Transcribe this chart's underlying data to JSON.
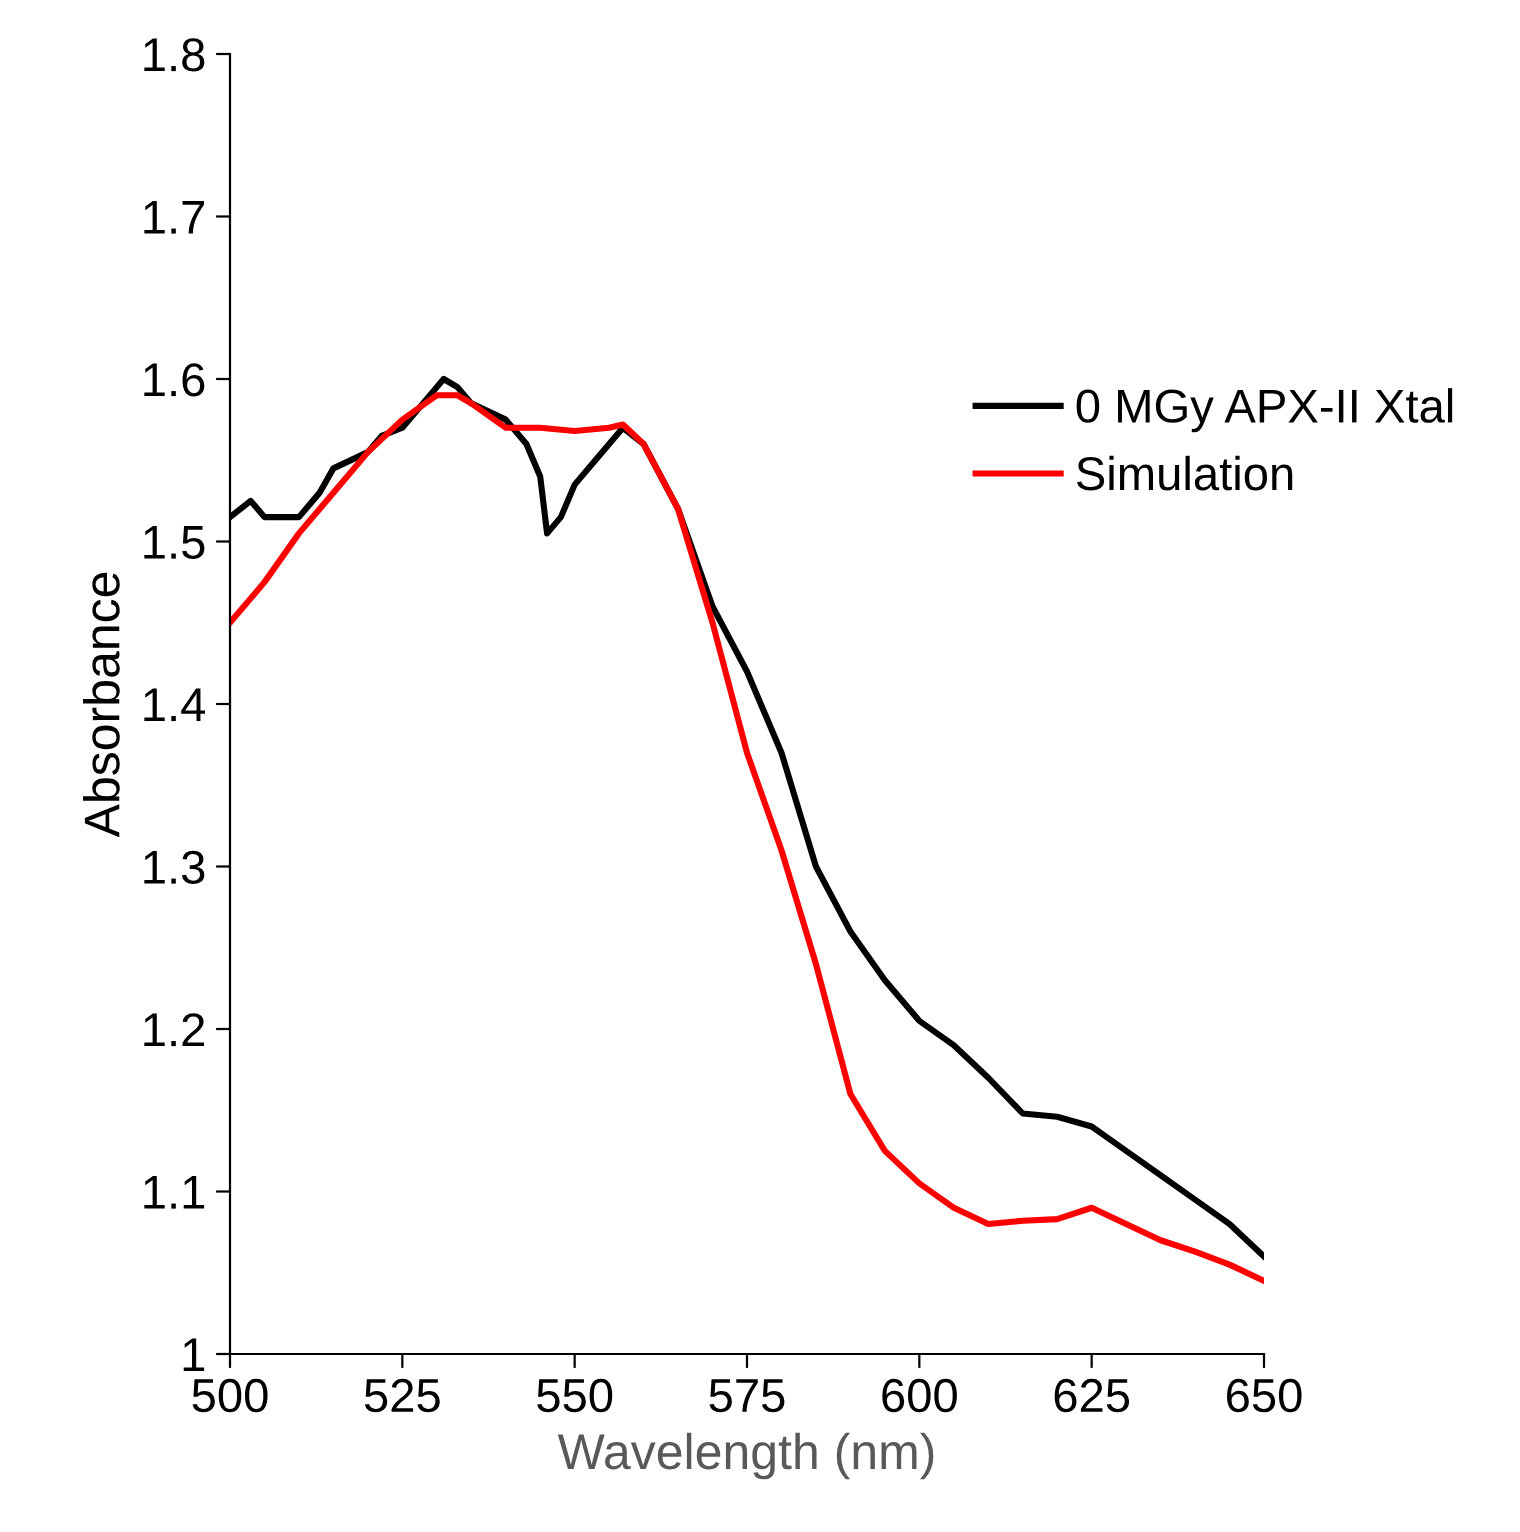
{
  "chart_data": {
    "type": "line",
    "xlabel": "Wavelength (nm)",
    "ylabel": "Absorbance",
    "xlim": [
      500,
      650
    ],
    "xticks": [
      500,
      525,
      550,
      575,
      600,
      625,
      650
    ],
    "ylim": [
      1,
      1.8
    ],
    "yticks": [
      1,
      1.1,
      1.2,
      1.3,
      1.4,
      1.5,
      1.6,
      1.7,
      1.8
    ],
    "grid": false,
    "legend": "right",
    "marker": "none",
    "line_style": "solid",
    "series": [
      {
        "name": "0 MGy APX-II Xtal",
        "color": "#000000",
        "x": [
          500,
          503,
          505,
          510,
          513,
          515,
          520,
          522,
          525,
          528,
          531,
          533,
          535,
          540,
          543,
          545,
          546,
          548,
          550,
          553,
          557,
          560,
          565,
          570,
          575,
          580,
          585,
          590,
          595,
          600,
          605,
          610,
          615,
          620,
          625,
          630,
          635,
          640,
          645,
          650
        ],
        "values": [
          1.515,
          1.525,
          1.515,
          1.515,
          1.53,
          1.545,
          1.555,
          1.565,
          1.57,
          1.585,
          1.6,
          1.595,
          1.585,
          1.575,
          1.56,
          1.54,
          1.505,
          1.515,
          1.535,
          1.55,
          1.57,
          1.56,
          1.52,
          1.46,
          1.42,
          1.37,
          1.3,
          1.26,
          1.23,
          1.205,
          1.19,
          1.17,
          1.148,
          1.146,
          1.14,
          1.125,
          1.11,
          1.095,
          1.08,
          1.06
        ]
      },
      {
        "name": "Simulation",
        "color": "#ff0000",
        "x": [
          500,
          505,
          510,
          515,
          520,
          525,
          530,
          533,
          535,
          540,
          545,
          550,
          555,
          557,
          560,
          565,
          570,
          575,
          580,
          585,
          590,
          595,
          600,
          605,
          610,
          615,
          620,
          625,
          630,
          635,
          640,
          645,
          650
        ],
        "values": [
          1.45,
          1.475,
          1.505,
          1.53,
          1.555,
          1.575,
          1.59,
          1.59,
          1.585,
          1.57,
          1.57,
          1.568,
          1.57,
          1.572,
          1.56,
          1.52,
          1.45,
          1.37,
          1.31,
          1.24,
          1.16,
          1.125,
          1.105,
          1.09,
          1.08,
          1.082,
          1.083,
          1.09,
          1.08,
          1.07,
          1.063,
          1.055,
          1.045
        ]
      }
    ]
  }
}
